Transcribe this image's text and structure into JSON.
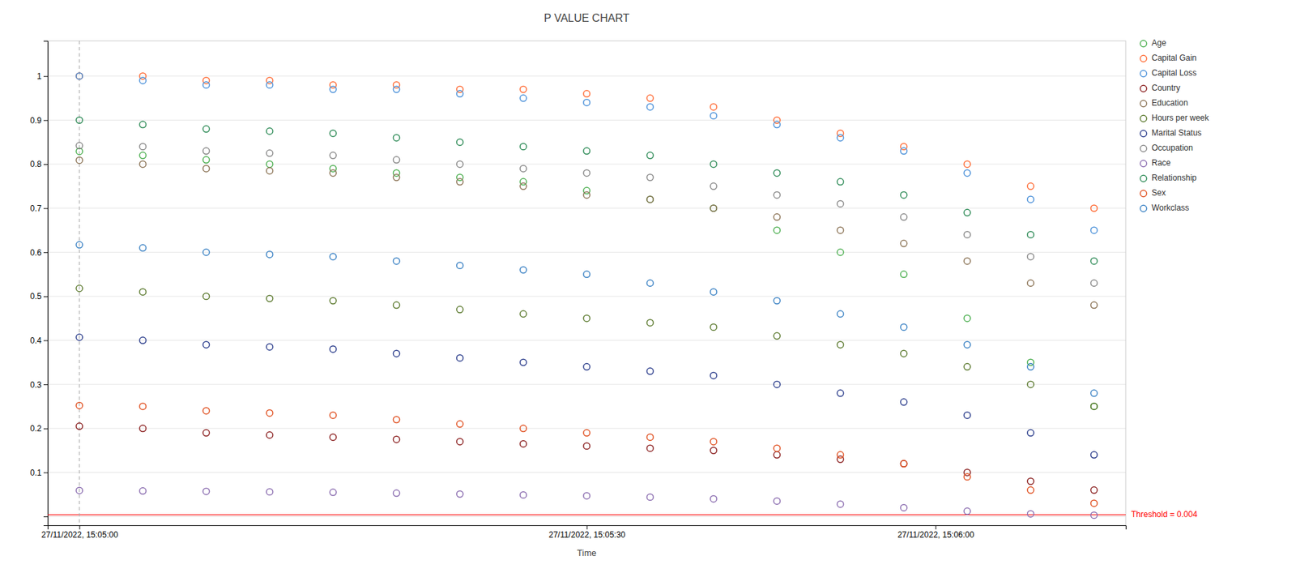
{
  "chart_data": {
    "type": "scatter",
    "title": "P VALUE CHART",
    "x_label": "Time",
    "xlim": [
      0,
      34
    ],
    "xticks": [
      {
        "value": 1,
        "label": "27/11/2022, 15:05:00"
      },
      {
        "value": 17,
        "label": "27/11/2022, 15:05:30"
      },
      {
        "value": 28,
        "label": "27/11/2022, 15:06:00"
      }
    ],
    "ylim": [
      -0.02,
      1.08
    ],
    "yticks": [
      {
        "value": 0,
        "label": null
      },
      0.1,
      0.2,
      0.3,
      0.4,
      0.5,
      0.6,
      0.7,
      0.8,
      0.9,
      1
    ],
    "grid": "y",
    "legend": "right",
    "marker": "circle",
    "annotations": [
      {
        "type": "hline",
        "value": 0.004,
        "label": "Threshold = 0.004",
        "color": "red",
        "line_style": "solid"
      },
      {
        "type": "vline",
        "value": 1,
        "line_style": "dashed"
      }
    ],
    "series": [
      {
        "name": "Age",
        "color": "#4CAF50",
        "x": [
          1,
          3,
          5,
          7,
          9,
          11,
          13,
          15,
          17,
          19,
          21,
          23,
          25,
          27,
          29,
          31,
          33
        ],
        "values": [
          0.829,
          0.82,
          0.81,
          0.8,
          0.79,
          0.78,
          0.77,
          0.76,
          0.74,
          0.72,
          0.7,
          0.65,
          0.6,
          0.55,
          0.45,
          0.35,
          0.25
        ]
      },
      {
        "name": "Capital Gain",
        "color": "#FF6B35",
        "x": [
          1,
          3,
          5,
          7,
          9,
          11,
          13,
          15,
          17,
          19,
          21,
          23,
          25,
          27,
          29,
          31,
          33
        ],
        "values": [
          1.0,
          1.0,
          0.99,
          0.99,
          0.98,
          0.98,
          0.97,
          0.97,
          0.96,
          0.95,
          0.93,
          0.9,
          0.87,
          0.84,
          0.8,
          0.75,
          0.7
        ]
      },
      {
        "name": "Capital Loss",
        "color": "#4A90D9",
        "x": [
          1,
          3,
          5,
          7,
          9,
          11,
          13,
          15,
          17,
          19,
          21,
          23,
          25,
          27,
          29,
          31,
          33
        ],
        "values": [
          1.0,
          0.99,
          0.98,
          0.98,
          0.97,
          0.97,
          0.96,
          0.95,
          0.94,
          0.93,
          0.91,
          0.89,
          0.86,
          0.83,
          0.78,
          0.72,
          0.65
        ]
      },
      {
        "name": "Country",
        "color": "#8B2020",
        "x": [
          1,
          3,
          5,
          7,
          9,
          11,
          13,
          15,
          17,
          19,
          21,
          23,
          25,
          27,
          29,
          31,
          33
        ],
        "values": [
          0.205,
          0.2,
          0.19,
          0.185,
          0.18,
          0.175,
          0.17,
          0.165,
          0.16,
          0.155,
          0.15,
          0.14,
          0.13,
          0.12,
          0.1,
          0.08,
          0.06
        ]
      },
      {
        "name": "Education",
        "color": "#8B7355",
        "x": [
          1,
          3,
          5,
          7,
          9,
          11,
          13,
          15,
          17,
          19,
          21,
          23,
          25,
          27,
          29,
          31,
          33
        ],
        "values": [
          0.809,
          0.8,
          0.79,
          0.785,
          0.78,
          0.77,
          0.76,
          0.75,
          0.73,
          0.72,
          0.7,
          0.68,
          0.65,
          0.62,
          0.58,
          0.53,
          0.48
        ]
      },
      {
        "name": "Hours per week",
        "color": "#5C7A2F",
        "x": [
          1,
          3,
          5,
          7,
          9,
          11,
          13,
          15,
          17,
          19,
          21,
          23,
          25,
          27,
          29,
          31,
          33
        ],
        "values": [
          0.518,
          0.51,
          0.5,
          0.495,
          0.49,
          0.48,
          0.47,
          0.46,
          0.45,
          0.44,
          0.43,
          0.41,
          0.39,
          0.37,
          0.34,
          0.3,
          0.25
        ]
      },
      {
        "name": "Marital Status",
        "color": "#2C3E8C",
        "x": [
          1,
          3,
          5,
          7,
          9,
          11,
          13,
          15,
          17,
          19,
          21,
          23,
          25,
          27,
          29,
          31,
          33
        ],
        "values": [
          0.407,
          0.4,
          0.39,
          0.385,
          0.38,
          0.37,
          0.36,
          0.35,
          0.34,
          0.33,
          0.32,
          0.3,
          0.28,
          0.26,
          0.23,
          0.19,
          0.14
        ]
      },
      {
        "name": "Occupation",
        "color": "#888888",
        "x": [
          1,
          3,
          5,
          7,
          9,
          11,
          13,
          15,
          17,
          19,
          21,
          23,
          25,
          27,
          29,
          31,
          33
        ],
        "values": [
          0.842,
          0.84,
          0.83,
          0.825,
          0.82,
          0.81,
          0.8,
          0.79,
          0.78,
          0.77,
          0.75,
          0.73,
          0.71,
          0.68,
          0.64,
          0.59,
          0.53
        ]
      },
      {
        "name": "Race",
        "color": "#8B6DB0",
        "x": [
          1,
          3,
          5,
          7,
          9,
          11,
          13,
          15,
          17,
          19,
          21,
          23,
          25,
          27,
          29,
          31,
          33
        ],
        "values": [
          0.059,
          0.058,
          0.057,
          0.056,
          0.055,
          0.053,
          0.051,
          0.049,
          0.047,
          0.044,
          0.04,
          0.035,
          0.028,
          0.02,
          0.012,
          0.006,
          0.003
        ]
      },
      {
        "name": "Relationship",
        "color": "#2E8B57",
        "x": [
          1,
          3,
          5,
          7,
          9,
          11,
          13,
          15,
          17,
          19,
          21,
          23,
          25,
          27,
          29,
          31,
          33
        ],
        "values": [
          0.9,
          0.89,
          0.88,
          0.875,
          0.87,
          0.86,
          0.85,
          0.84,
          0.83,
          0.82,
          0.8,
          0.78,
          0.76,
          0.73,
          0.69,
          0.64,
          0.58
        ]
      },
      {
        "name": "Sex",
        "color": "#E05020",
        "x": [
          1,
          3,
          5,
          7,
          9,
          11,
          13,
          15,
          17,
          19,
          21,
          23,
          25,
          27,
          29,
          31,
          33
        ],
        "values": [
          0.252,
          0.25,
          0.24,
          0.235,
          0.23,
          0.22,
          0.21,
          0.2,
          0.19,
          0.18,
          0.17,
          0.155,
          0.14,
          0.12,
          0.09,
          0.06,
          0.03
        ]
      },
      {
        "name": "Workclass",
        "color": "#3B82C4",
        "x": [
          1,
          3,
          5,
          7,
          9,
          11,
          13,
          15,
          17,
          19,
          21,
          23,
          25,
          27,
          29,
          31,
          33
        ],
        "values": [
          0.617,
          0.61,
          0.6,
          0.595,
          0.59,
          0.58,
          0.57,
          0.56,
          0.55,
          0.53,
          0.51,
          0.49,
          0.46,
          0.43,
          0.39,
          0.34,
          0.28
        ]
      }
    ]
  }
}
